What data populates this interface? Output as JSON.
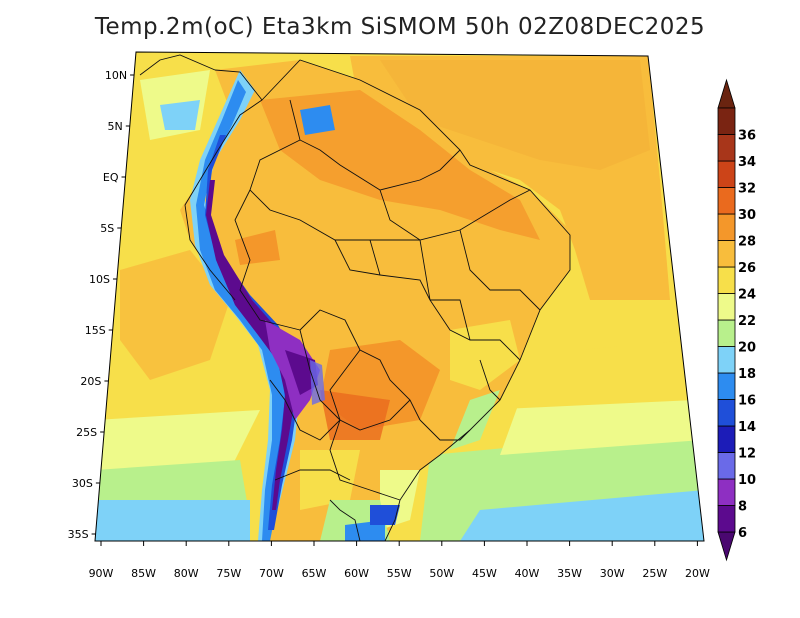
{
  "title": "Temp.2m(oC) Eta3km SiSMOM 50h 02Z08DEC2025",
  "lat_labels": [
    "10N",
    "5N",
    "EQ",
    "5S",
    "10S",
    "15S",
    "20S",
    "25S",
    "30S",
    "35S"
  ],
  "lon_labels": [
    "90W",
    "85W",
    "80W",
    "75W",
    "70W",
    "65W",
    "60W",
    "55W",
    "50W",
    "45W",
    "40W",
    "35W",
    "30W",
    "25W",
    "20W"
  ],
  "colorbar": {
    "levels": [
      "6",
      "8",
      "10",
      "12",
      "14",
      "16",
      "18",
      "20",
      "22",
      "24",
      "26",
      "28",
      "30",
      "32",
      "34",
      "36"
    ],
    "colors": [
      "#5c0a8e",
      "#8e2fc2",
      "#6a6ae8",
      "#1c1cb8",
      "#1f4fd9",
      "#2d8cf0",
      "#7ed2f8",
      "#b8f08c",
      "#eefa8a",
      "#f7df4a",
      "#f8bd3c",
      "#f4972a",
      "#ea6a1e",
      "#cc4418",
      "#a8361a",
      "#7a2412"
    ],
    "low_end_color": "#4a0870",
    "high_end_color": "#6a2410"
  }
}
